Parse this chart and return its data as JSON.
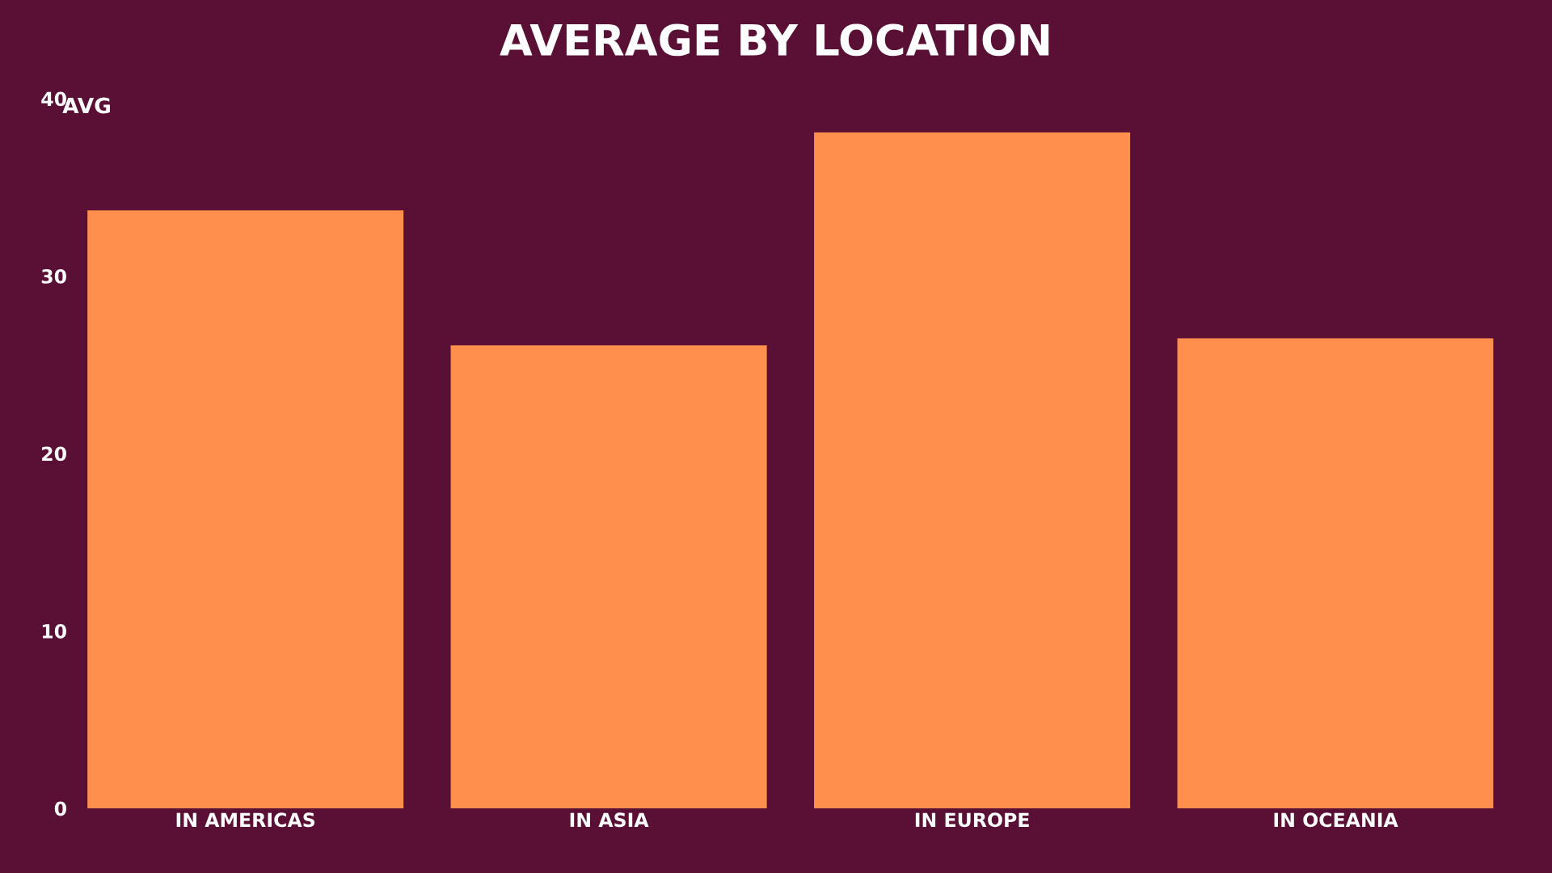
{
  "chart_data": {
    "type": "bar",
    "title": "AVERAGE BY LOCATION",
    "ylabel": "AVG",
    "categories": [
      "IN AMERICAS",
      "IN ASIA",
      "IN EUROPE",
      "IN OCEANIA"
    ],
    "values": [
      33.7,
      26.1,
      38.1,
      26.5
    ],
    "color": "#ff8f4d",
    "ylim": [
      0,
      40
    ],
    "yticks": [
      0,
      10,
      20,
      30,
      40
    ],
    "grid": false,
    "legend": false
  }
}
